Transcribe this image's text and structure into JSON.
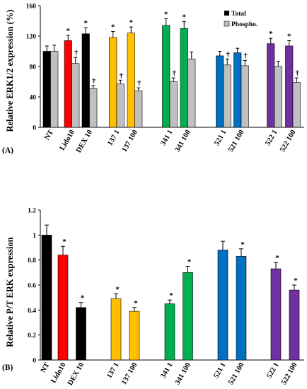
{
  "colors": {
    "black": "#000000",
    "red": "#FF0000",
    "yellow": "#FFC000",
    "green": "#00B050",
    "blue": "#0070C0",
    "purple": "#7030A0",
    "grey": "#C0C0C0"
  },
  "chart_data": [
    {
      "type": "bar",
      "panel_label": "(A)",
      "ylabel": "Relative ERK1/2 expression (%)",
      "ylim": [
        0,
        160
      ],
      "yticks": [
        "0",
        "40",
        "80",
        "120",
        "160"
      ],
      "legend": {
        "placement": "top-right",
        "entries": [
          "Total",
          "Phospho."
        ]
      },
      "categories": [
        "NT",
        "Lido10",
        "DEX 10",
        "137 1",
        "137 100",
        "341 1",
        "341 100",
        "521 1",
        "521 100",
        "522 1",
        "522 100"
      ],
      "series": [
        {
          "name": "Total",
          "values": [
            100,
            114,
            123,
            118,
            124,
            134,
            130,
            94,
            98,
            110,
            107
          ],
          "errors": [
            7,
            7,
            8,
            8,
            8,
            9,
            9,
            6,
            6,
            7,
            7
          ],
          "marks": [
            "",
            "*",
            "*",
            "*",
            "*",
            "*",
            "*",
            "",
            "",
            "*",
            "*"
          ]
        },
        {
          "name": "Phospho.",
          "values": [
            100,
            84,
            51,
            57,
            48,
            60,
            90,
            82,
            81,
            80,
            59
          ],
          "errors": [
            8,
            8,
            4,
            5,
            4,
            5,
            9,
            8,
            7,
            7,
            6
          ],
          "marks": [
            "",
            "†",
            "†",
            "†",
            "†",
            "†",
            "",
            "†",
            "†",
            "",
            "†"
          ]
        }
      ],
      "bar_colors": [
        "black",
        "red",
        "black",
        "yellow",
        "yellow",
        "green",
        "green",
        "blue",
        "blue",
        "purple",
        "purple"
      ]
    },
    {
      "type": "bar",
      "panel_label": "(B)",
      "ylabel": "Relative P/T ERK expression",
      "ylim": [
        0,
        1.2
      ],
      "yticks": [
        "0",
        "0.2",
        "0.4",
        "0.6",
        "0.8",
        "1",
        "1.2"
      ],
      "categories": [
        "NT",
        "Lido10",
        "DEX 10",
        "137 1",
        "137 100",
        "341 1",
        "341 100",
        "521 1",
        "521 100",
        "522 1",
        "522 100"
      ],
      "values": [
        1.0,
        0.84,
        0.42,
        0.49,
        0.39,
        0.45,
        0.7,
        0.88,
        0.83,
        0.73,
        0.56
      ],
      "errors": [
        0.08,
        0.07,
        0.04,
        0.04,
        0.03,
        0.03,
        0.05,
        0.07,
        0.06,
        0.05,
        0.04
      ],
      "marks": [
        "",
        "*",
        "*",
        "*",
        "*",
        "*",
        "*",
        "",
        "*",
        "*",
        "*"
      ],
      "bar_colors": [
        "black",
        "red",
        "black",
        "yellow",
        "yellow",
        "green",
        "green",
        "blue",
        "blue",
        "purple",
        "purple"
      ]
    }
  ]
}
